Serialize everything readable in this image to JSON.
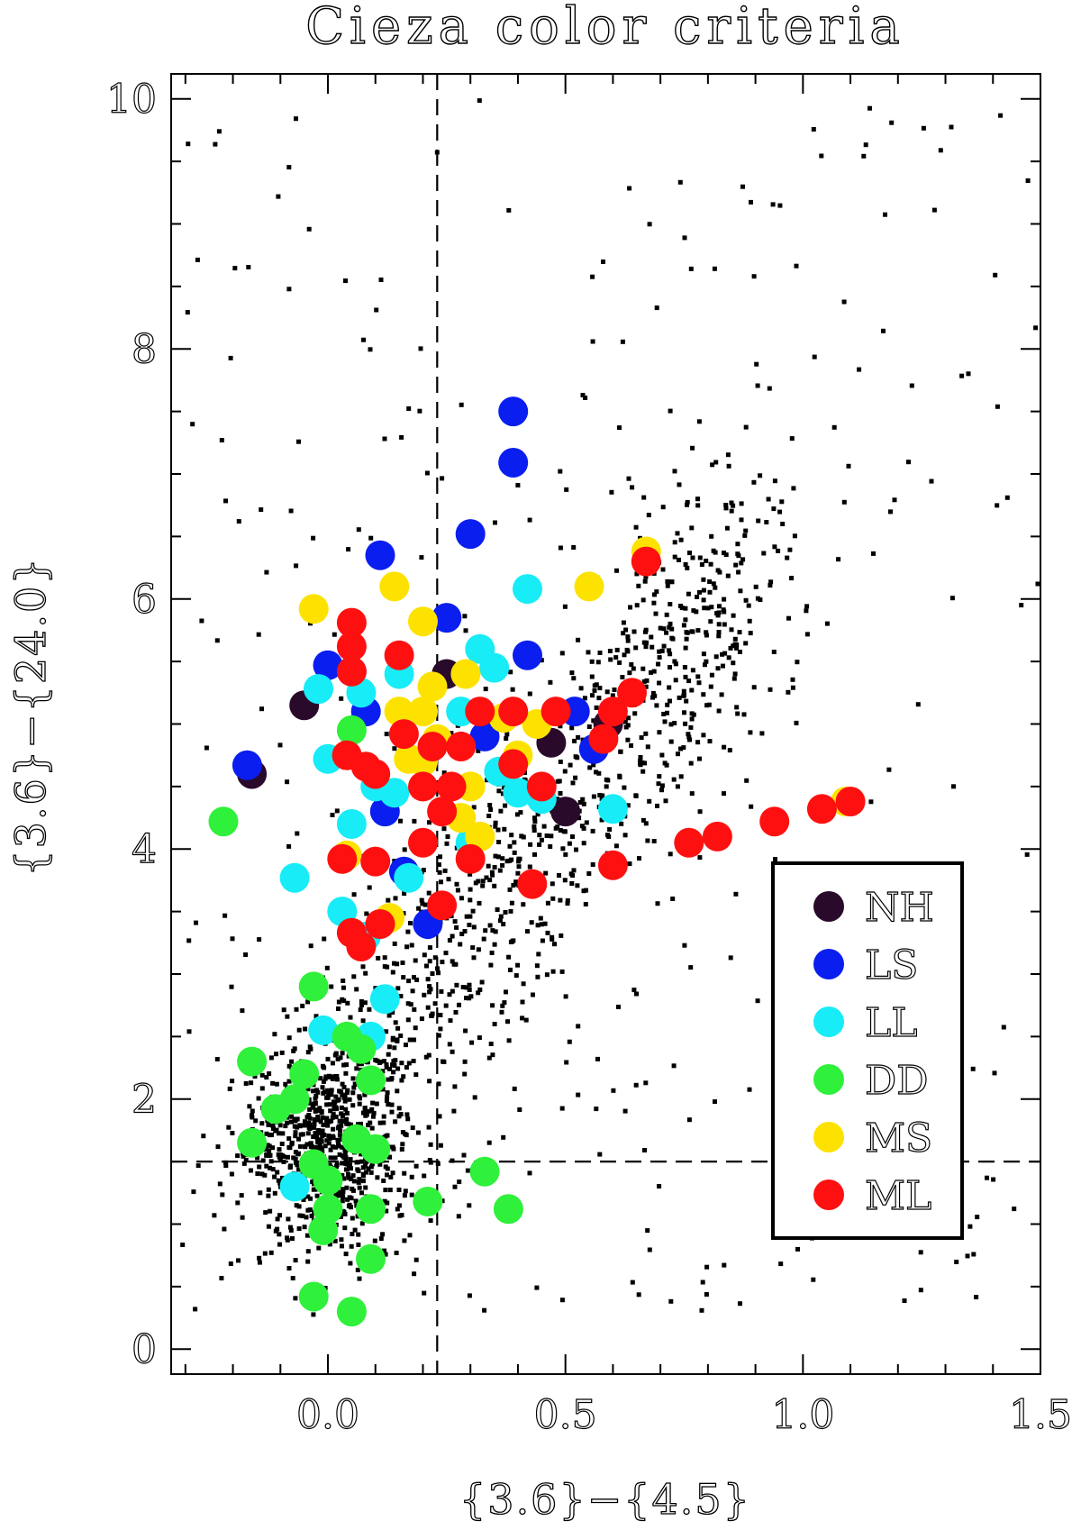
{
  "chart_data": {
    "type": "scatter",
    "title": "Cieza color criteria",
    "xlabel": "{3.6}−{4.5}",
    "ylabel": "{3.6}−{24.0}",
    "xlim": [
      -0.33,
      1.5
    ],
    "ylim": [
      -0.2,
      10.2
    ],
    "xticks": [
      0.0,
      0.5,
      1.0,
      1.5
    ],
    "xtick_labels": [
      "0.0",
      "0.5",
      "1.0",
      "1.5"
    ],
    "yticks": [
      0,
      2,
      4,
      6,
      8,
      10
    ],
    "ytick_labels": [
      "0",
      "2",
      "4",
      "6",
      "8",
      "10"
    ],
    "grid": false,
    "legend_position": "lower-right",
    "reference_lines": [
      {
        "orientation": "vertical",
        "x": 0.23,
        "style": "dashed"
      },
      {
        "orientation": "horizontal",
        "y": 1.5,
        "style": "dashed"
      }
    ],
    "series": [
      {
        "name": "NH",
        "color": "#2a0a2a",
        "points": [
          [
            -0.16,
            4.6
          ],
          [
            -0.05,
            5.15
          ],
          [
            0.25,
            5.4
          ],
          [
            0.47,
            4.85
          ],
          [
            0.5,
            4.3
          ],
          [
            0.59,
            5.0
          ]
        ]
      },
      {
        "name": "LS",
        "color": "#0a1ef0",
        "points": [
          [
            -0.17,
            4.67
          ],
          [
            0.11,
            6.35
          ],
          [
            0.3,
            6.52
          ],
          [
            0.39,
            7.5
          ],
          [
            0.39,
            7.09
          ],
          [
            0.25,
            5.85
          ],
          [
            0.42,
            5.55
          ],
          [
            0.0,
            5.47
          ],
          [
            0.16,
            3.82
          ],
          [
            0.21,
            3.4
          ],
          [
            0.12,
            4.3
          ],
          [
            0.56,
            4.8
          ],
          [
            0.52,
            5.1
          ],
          [
            0.33,
            4.9
          ],
          [
            0.05,
            5.42
          ],
          [
            0.08,
            5.1
          ]
        ]
      },
      {
        "name": "LL",
        "color": "#18ecf6",
        "points": [
          [
            -0.07,
            3.77
          ],
          [
            -0.02,
            5.28
          ],
          [
            0.0,
            4.72
          ],
          [
            0.1,
            4.5
          ],
          [
            0.05,
            4.2
          ],
          [
            0.07,
            5.25
          ],
          [
            0.15,
            5.4
          ],
          [
            0.17,
            3.77
          ],
          [
            0.12,
            2.8
          ],
          [
            0.09,
            2.5
          ],
          [
            -0.01,
            2.55
          ],
          [
            0.32,
            5.6
          ],
          [
            0.42,
            6.08
          ],
          [
            0.35,
            5.45
          ],
          [
            0.4,
            4.45
          ],
          [
            0.45,
            4.4
          ],
          [
            0.6,
            4.32
          ],
          [
            0.3,
            4.05
          ],
          [
            0.14,
            4.45
          ],
          [
            0.03,
            3.5
          ],
          [
            0.08,
            3.3
          ],
          [
            -0.07,
            1.3
          ],
          [
            0.36,
            4.62
          ],
          [
            0.28,
            5.1
          ]
        ]
      },
      {
        "name": "DD",
        "color": "#2ff03a",
        "points": [
          [
            -0.22,
            4.22
          ],
          [
            -0.16,
            2.3
          ],
          [
            -0.16,
            1.65
          ],
          [
            -0.11,
            1.92
          ],
          [
            -0.07,
            2.0
          ],
          [
            -0.05,
            2.2
          ],
          [
            -0.03,
            2.9
          ],
          [
            -0.03,
            1.48
          ],
          [
            0.0,
            1.35
          ],
          [
            0.0,
            1.12
          ],
          [
            -0.01,
            0.95
          ],
          [
            -0.03,
            0.42
          ],
          [
            0.05,
            0.3
          ],
          [
            0.09,
            0.72
          ],
          [
            0.06,
            1.68
          ],
          [
            0.09,
            1.12
          ],
          [
            0.1,
            1.6
          ],
          [
            0.09,
            2.15
          ],
          [
            0.07,
            2.4
          ],
          [
            0.04,
            2.5
          ],
          [
            0.21,
            1.18
          ],
          [
            0.33,
            1.42
          ],
          [
            0.38,
            1.12
          ],
          [
            0.05,
            4.95
          ]
        ]
      },
      {
        "name": "MS",
        "color": "#fde200",
        "points": [
          [
            -0.03,
            5.92
          ],
          [
            0.14,
            6.1
          ],
          [
            0.2,
            5.82
          ],
          [
            0.29,
            5.4
          ],
          [
            0.22,
            5.3
          ],
          [
            0.2,
            5.1
          ],
          [
            0.15,
            5.1
          ],
          [
            0.17,
            4.72
          ],
          [
            0.23,
            4.88
          ],
          [
            0.3,
            4.5
          ],
          [
            0.32,
            4.1
          ],
          [
            0.28,
            4.25
          ],
          [
            0.37,
            5.05
          ],
          [
            0.44,
            5.0
          ],
          [
            0.4,
            4.75
          ],
          [
            0.55,
            6.1
          ],
          [
            0.67,
            6.38
          ],
          [
            1.09,
            4.38
          ],
          [
            0.04,
            3.95
          ],
          [
            0.13,
            3.45
          ],
          [
            0.2,
            4.7
          ]
        ]
      },
      {
        "name": "ML",
        "color": "#ff1010",
        "points": [
          [
            0.05,
            5.81
          ],
          [
            0.05,
            5.62
          ],
          [
            0.05,
            5.42
          ],
          [
            0.15,
            5.55
          ],
          [
            0.04,
            4.75
          ],
          [
            0.08,
            4.66
          ],
          [
            0.1,
            4.6
          ],
          [
            0.16,
            4.92
          ],
          [
            0.2,
            4.5
          ],
          [
            0.22,
            4.82
          ],
          [
            0.26,
            4.5
          ],
          [
            0.28,
            4.82
          ],
          [
            0.24,
            4.3
          ],
          [
            0.2,
            4.05
          ],
          [
            0.3,
            3.92
          ],
          [
            0.32,
            5.1
          ],
          [
            0.39,
            5.1
          ],
          [
            0.39,
            4.68
          ],
          [
            0.45,
            4.5
          ],
          [
            0.48,
            5.1
          ],
          [
            0.6,
            5.1
          ],
          [
            0.64,
            5.25
          ],
          [
            0.67,
            6.3
          ],
          [
            0.58,
            4.88
          ],
          [
            0.6,
            3.87
          ],
          [
            0.43,
            3.72
          ],
          [
            0.24,
            3.55
          ],
          [
            0.11,
            3.4
          ],
          [
            0.03,
            3.92
          ],
          [
            0.1,
            3.9
          ],
          [
            0.05,
            3.33
          ],
          [
            0.07,
            3.22
          ],
          [
            0.76,
            4.05
          ],
          [
            0.82,
            4.1
          ],
          [
            0.94,
            4.22
          ],
          [
            1.04,
            4.32
          ],
          [
            1.1,
            4.38
          ]
        ]
      }
    ],
    "background_sample": {
      "name": "",
      "color": "#000000",
      "count": 2000,
      "note_visible": false
    }
  }
}
